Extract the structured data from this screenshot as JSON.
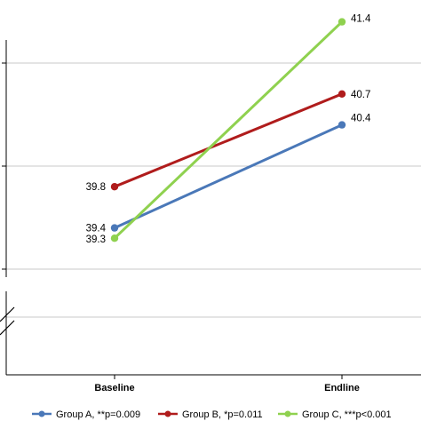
{
  "chart_data": {
    "type": "line",
    "categories": [
      "Baseline",
      "Endline"
    ],
    "series": [
      {
        "name": "Group A, **p=0.009",
        "values": [
          39.4,
          40.4
        ],
        "color": "#4a78b8",
        "labels": [
          "39.4",
          "40.4"
        ]
      },
      {
        "name": "Group B, *p=0.011",
        "values": [
          39.8,
          40.7
        ],
        "color": "#b01c1c",
        "labels": [
          "39.8",
          "40.7"
        ]
      },
      {
        "name": "Group C, ***p<0.001",
        "values": [
          39.3,
          41.4
        ],
        "color": "#8fd14f",
        "labels": [
          "39.3",
          "41.4"
        ]
      }
    ],
    "ylim": [
      38.6,
      41.6
    ],
    "yticks": [
      39.0,
      40.0,
      41.0
    ],
    "axis_break": true,
    "grid": true,
    "legend_position": "bottom",
    "colors": {
      "axis": "#000000",
      "grid": "#c8c8c8"
    }
  }
}
